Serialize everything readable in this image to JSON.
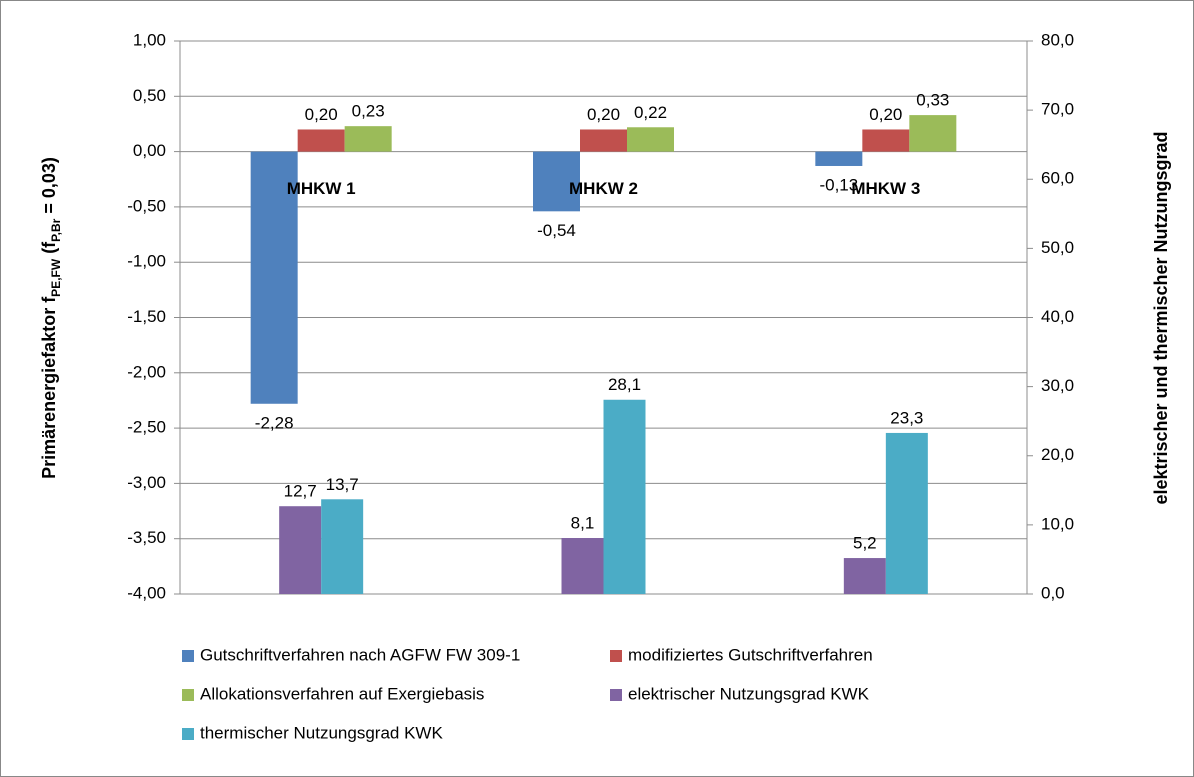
{
  "chart_data": {
    "type": "bar",
    "ylabel": [
      "Primärenergiefaktor f",
      "PE,FW",
      " (f",
      "P,Br",
      " = 0,03)"
    ],
    "y2label": "elektrischer und thermischer Nutzungsgrad",
    "categories": [
      "MHKW 1",
      "MHKW 2",
      "MHKW 3"
    ],
    "series": [
      {
        "name": "Gutschriftverfahren nach AGFW FW 309-1",
        "color": "#4f81bd",
        "values": [
          -2.28,
          -0.54,
          -0.13
        ],
        "value_labels": [
          "-2,28",
          "-0,54",
          "-0,13"
        ]
      },
      {
        "name": "modifiziertes Gutschriftverfahren",
        "color": "#c0504d",
        "values": [
          0.2,
          0.2,
          0.2
        ],
        "value_labels": [
          "0,20",
          "0,20",
          "0,20"
        ]
      },
      {
        "name": "Allokationsverfahren auf Exergiebasis",
        "color": "#9bbb59",
        "values": [
          0.23,
          0.22,
          0.33
        ],
        "value_labels": [
          "0,23",
          "0,22",
          "0,33"
        ]
      },
      {
        "name": "elektrischer Nutzungsgrad KWK",
        "color": "#8064a2",
        "axis": "y2",
        "values": [
          12.7,
          8.1,
          5.2
        ],
        "value_labels": [
          "12,7",
          "8,1",
          "5,2"
        ]
      },
      {
        "name": "thermischer Nutzungsgrad KWK",
        "color": "#4bacc6",
        "axis": "y2",
        "values": [
          13.7,
          28.1,
          23.3
        ],
        "value_labels": [
          "13,7",
          "28,1",
          "23,3"
        ]
      }
    ],
    "ylim": [
      -4,
      1
    ],
    "yticks": [
      {
        "value": -4,
        "label": "-4,00"
      },
      {
        "value": -3.5,
        "label": "-3,50"
      },
      {
        "value": -3,
        "label": "-3,00"
      },
      {
        "value": -2.5,
        "label": "-2,50"
      },
      {
        "value": -2,
        "label": "-2,00"
      },
      {
        "value": -1.5,
        "label": "-1,50"
      },
      {
        "value": -1,
        "label": "-1,00"
      },
      {
        "value": -0.5,
        "label": "-0,50"
      },
      {
        "value": 0,
        "label": "0,00"
      },
      {
        "value": 0.5,
        "label": "0,50"
      },
      {
        "value": 1,
        "label": "1,00"
      }
    ],
    "y2lim": [
      0,
      80
    ],
    "y2ticks": [
      {
        "value": 0,
        "label": "0,0"
      },
      {
        "value": 10,
        "label": "10,0"
      },
      {
        "value": 20,
        "label": "20,0"
      },
      {
        "value": 30,
        "label": "30,0"
      },
      {
        "value": 40,
        "label": "40,0"
      },
      {
        "value": 50,
        "label": "50,0"
      },
      {
        "value": 60,
        "label": "60,0"
      },
      {
        "value": 70,
        "label": "70,0"
      },
      {
        "value": 80,
        "label": "80,0"
      }
    ],
    "grid": true
  }
}
